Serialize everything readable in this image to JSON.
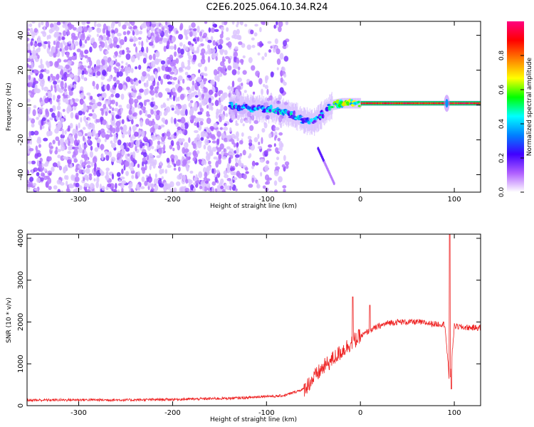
{
  "title": "C2E6.2025.064.10.34.R24",
  "chart_data": [
    {
      "type": "heatmap",
      "xlabel": "Height of straight line (km)",
      "ylabel": "Frequency (Hz)",
      "xlim": [
        -355,
        128
      ],
      "ylim": [
        -50,
        48
      ],
      "x_ticks": [
        -300,
        -200,
        -100,
        0,
        100
      ],
      "y_ticks": [
        -40,
        -20,
        0,
        20,
        40
      ],
      "grid": false,
      "colorbar": {
        "label": "Normalized spectral amplitude",
        "range": [
          0,
          1
        ],
        "ticks": [
          "0.0",
          "0.2",
          "0.4",
          "0.6",
          "0.8"
        ],
        "colors": [
          "#ffffff",
          "#b060ff",
          "#4000ff",
          "#0080ff",
          "#00ffff",
          "#00ff00",
          "#ffff00",
          "#ff8000",
          "#ff0000",
          "#ff0080"
        ]
      },
      "features": {
        "noise_region_x": [
          -355,
          -78
        ],
        "sparse_noise_region_x": [
          -130,
          -78
        ],
        "signal_band_center_hz": [
          [
            -140,
            0
          ],
          [
            -110,
            -2
          ],
          [
            -90,
            -3
          ],
          [
            -70,
            -6
          ],
          [
            -60,
            -9
          ],
          [
            -50,
            -10
          ],
          [
            -40,
            -5
          ],
          [
            -30,
            0
          ],
          [
            -20,
            1
          ],
          [
            0,
            1
          ],
          [
            50,
            1
          ],
          [
            90,
            1
          ],
          [
            128,
            1
          ]
        ],
        "diagonal_streak": [
          [
            -45,
            -25
          ],
          [
            -28,
            -45
          ]
        ],
        "spike_x": 92
      }
    },
    {
      "type": "line",
      "xlabel": "Height of straight line (km)",
      "ylabel": "SNR (10 * v/v)",
      "xlim": [
        -355,
        128
      ],
      "ylim": [
        0,
        4100
      ],
      "x_ticks": [
        -300,
        -200,
        -100,
        0,
        100
      ],
      "y_ticks": [
        0,
        1000,
        2000,
        3000,
        4000
      ],
      "grid": false,
      "series": [
        {
          "color": "#ee2222",
          "points": [
            [
              -355,
              130
            ],
            [
              -300,
              140
            ],
            [
              -250,
              135
            ],
            [
              -200,
              150
            ],
            [
              -150,
              170
            ],
            [
              -120,
              190
            ],
            [
              -100,
              230
            ],
            [
              -90,
              220
            ],
            [
              -80,
              250
            ],
            [
              -60,
              400
            ],
            [
              -50,
              650
            ],
            [
              -40,
              900
            ],
            [
              -30,
              1100
            ],
            [
              -20,
              1300
            ],
            [
              -10,
              1500
            ],
            [
              0,
              1650
            ],
            [
              10,
              1800
            ],
            [
              20,
              1900
            ],
            [
              30,
              1980
            ],
            [
              40,
              2000
            ],
            [
              60,
              2000
            ],
            [
              80,
              1950
            ],
            [
              90,
              1950
            ],
            [
              95,
              500
            ],
            [
              100,
              1900
            ],
            [
              110,
              1870
            ],
            [
              128,
              1860
            ]
          ],
          "peaks": [
            [
              -8,
              2600
            ],
            [
              10,
              2400
            ],
            [
              95,
              4100
            ],
            [
              97,
              400
            ]
          ],
          "noise_amplitude": 180
        }
      ]
    }
  ]
}
